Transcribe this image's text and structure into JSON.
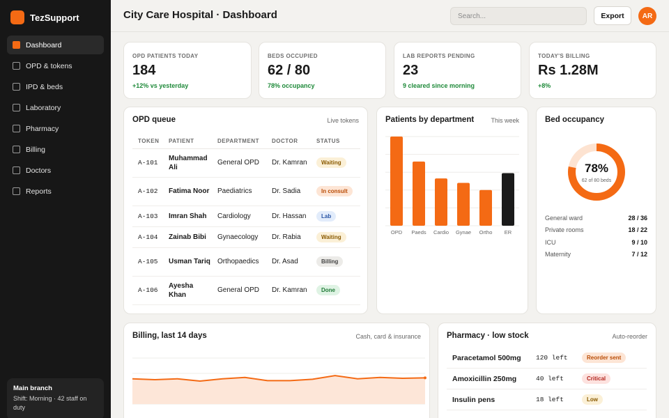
{
  "app": {
    "name": "TezSupport"
  },
  "sidebar": {
    "items": [
      {
        "label": "Dashboard",
        "active": true
      },
      {
        "label": "OPD & tokens"
      },
      {
        "label": "IPD & beds"
      },
      {
        "label": "Laboratory"
      },
      {
        "label": "Pharmacy"
      },
      {
        "label": "Billing"
      },
      {
        "label": "Doctors"
      },
      {
        "label": "Reports"
      }
    ],
    "branch": {
      "title": "Main branch",
      "subtitle": "Shift: Morning · 42 staff on duty"
    }
  },
  "header": {
    "title": "City Care Hospital · Dashboard",
    "search_placeholder": "Search...",
    "export_label": "Export",
    "avatar_initials": "AR"
  },
  "kpis": [
    {
      "label": "OPD PATIENTS TODAY",
      "value": "184",
      "delta": "+12% vs yesterday"
    },
    {
      "label": "BEDS OCCUPIED",
      "value": "62 / 80",
      "delta": "78% occupancy"
    },
    {
      "label": "LAB REPORTS PENDING",
      "value": "23",
      "delta": "9 cleared since morning"
    },
    {
      "label": "TODAY'S BILLING",
      "value": "Rs 1.28M",
      "delta": "+8%"
    }
  ],
  "opd_queue": {
    "title": "OPD queue",
    "meta": "Live tokens",
    "columns": [
      "TOKEN",
      "PATIENT",
      "DEPARTMENT",
      "DOCTOR",
      "STATUS"
    ],
    "rows": [
      {
        "token": "A-101",
        "patient": "Muhammad Ali",
        "department": "General OPD",
        "doctor": "Dr. Kamran",
        "status": "Waiting",
        "status_kind": "waiting"
      },
      {
        "token": "A-102",
        "patient": "Fatima Noor",
        "department": "Paediatrics",
        "doctor": "Dr. Sadia",
        "status": "In consult",
        "status_kind": "inconsult"
      },
      {
        "token": "A-103",
        "patient": "Imran Shah",
        "department": "Cardiology",
        "doctor": "Dr. Hassan",
        "status": "Lab",
        "status_kind": "lab"
      },
      {
        "token": "A-104",
        "patient": "Zainab Bibi",
        "department": "Gynaecology",
        "doctor": "Dr. Rabia",
        "status": "Waiting",
        "status_kind": "waiting"
      },
      {
        "token": "A-105",
        "patient": "Usman Tariq",
        "department": "Orthopaedics",
        "doctor": "Dr. Asad",
        "status": "Billing",
        "status_kind": "billing"
      },
      {
        "token": "A-106",
        "patient": "Ayesha Khan",
        "department": "General OPD",
        "doctor": "Dr. Kamran",
        "status": "Done",
        "status_kind": "done"
      }
    ]
  },
  "departments_chart": {
    "title": "Patients by department",
    "meta": "This week"
  },
  "bed_occupancy": {
    "title": "Bed occupancy",
    "percent": 78,
    "percent_label": "78%",
    "sub_label": "62 of 80 beds",
    "rows": [
      {
        "label": "General ward",
        "value": "28 / 36"
      },
      {
        "label": "Private rooms",
        "value": "18 / 22"
      },
      {
        "label": "ICU",
        "value": "9 / 10"
      },
      {
        "label": "Maternity",
        "value": "7 / 12"
      }
    ]
  },
  "billing": {
    "title": "Billing, last 14 days",
    "meta": "Cash, card & insurance"
  },
  "pharmacy": {
    "title": "Pharmacy · low stock",
    "meta": "Auto-reorder",
    "rows": [
      {
        "name": "Paracetamol 500mg",
        "left": "120 left",
        "status": "Reorder sent",
        "kind": "reorder"
      },
      {
        "name": "Amoxicillin 250mg",
        "left": "40 left",
        "status": "Critical",
        "kind": "critical"
      },
      {
        "name": "Insulin pens",
        "left": "18 left",
        "status": "Low",
        "kind": "low"
      }
    ]
  },
  "colors": {
    "accent": "#f46a14",
    "highlight_bar": "#1a1a1a",
    "positive": "#1f8a3a"
  },
  "chart_data": [
    {
      "type": "bar",
      "categories": [
        "OPD",
        "Paeds",
        "Cardio",
        "Gynae",
        "Ortho",
        "ER"
      ],
      "values": [
        100,
        72,
        53,
        48,
        40,
        59
      ],
      "highlight": "ER",
      "ylim": [
        0,
        100
      ],
      "grid": true
    },
    {
      "type": "area",
      "x": [
        1,
        2,
        3,
        4,
        5,
        6,
        7,
        8,
        9,
        10,
        11,
        12,
        13,
        14
      ],
      "values": [
        55,
        53,
        55,
        50,
        55,
        58,
        51,
        51,
        54,
        62,
        55,
        58,
        56,
        57
      ],
      "ylim": [
        0,
        100
      ],
      "grid": true
    }
  ]
}
